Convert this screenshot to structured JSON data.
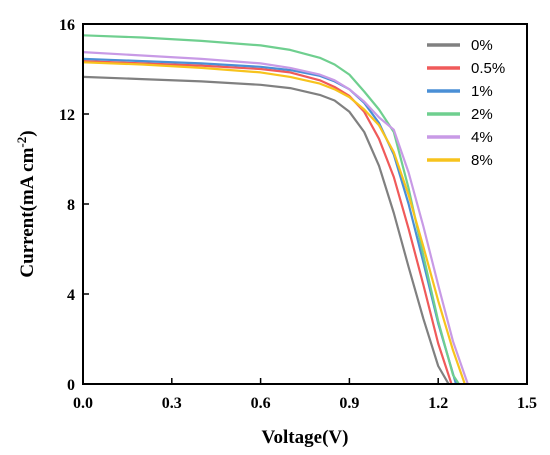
{
  "chart_data": {
    "type": "line",
    "xlabel": "Voltage(V)",
    "ylabel": "Current(mA cm",
    "ylabel_sup": "-2",
    "ylabel_end": ")",
    "xlim": [
      0.0,
      1.5
    ],
    "ylim": [
      0,
      16
    ],
    "xticks": [
      "0.0",
      "0.3",
      "0.6",
      "0.9",
      "1.2",
      "1.5"
    ],
    "yticks": [
      "0",
      "4",
      "8",
      "12",
      "16"
    ],
    "grid": false,
    "legend_position": "top-right",
    "series": [
      {
        "name": "0%",
        "color": "#808080",
        "points": [
          [
            0,
            13.65
          ],
          [
            0.2,
            13.55
          ],
          [
            0.4,
            13.45
          ],
          [
            0.6,
            13.3
          ],
          [
            0.7,
            13.15
          ],
          [
            0.8,
            12.85
          ],
          [
            0.85,
            12.6
          ],
          [
            0.9,
            12.1
          ],
          [
            0.95,
            11.2
          ],
          [
            1.0,
            9.7
          ],
          [
            1.05,
            7.6
          ],
          [
            1.1,
            5.2
          ],
          [
            1.15,
            2.9
          ],
          [
            1.2,
            0.8
          ],
          [
            1.235,
            0
          ]
        ]
      },
      {
        "name": "0.5%",
        "color": "#f05a5a",
        "points": [
          [
            0,
            14.35
          ],
          [
            0.2,
            14.25
          ],
          [
            0.4,
            14.15
          ],
          [
            0.6,
            14.0
          ],
          [
            0.7,
            13.85
          ],
          [
            0.8,
            13.5
          ],
          [
            0.85,
            13.2
          ],
          [
            0.9,
            12.8
          ],
          [
            0.95,
            12.1
          ],
          [
            1.0,
            10.9
          ],
          [
            1.05,
            9.2
          ],
          [
            1.1,
            6.9
          ],
          [
            1.15,
            4.4
          ],
          [
            1.2,
            1.8
          ],
          [
            1.245,
            0
          ]
        ]
      },
      {
        "name": "1%",
        "color": "#4a8fd6",
        "points": [
          [
            0,
            14.45
          ],
          [
            0.2,
            14.35
          ],
          [
            0.4,
            14.25
          ],
          [
            0.6,
            14.1
          ],
          [
            0.7,
            13.95
          ],
          [
            0.8,
            13.7
          ],
          [
            0.85,
            13.45
          ],
          [
            0.9,
            13.1
          ],
          [
            0.95,
            12.5
          ],
          [
            1.0,
            11.6
          ],
          [
            1.05,
            10.2
          ],
          [
            1.1,
            8.0
          ],
          [
            1.15,
            5.4
          ],
          [
            1.2,
            2.7
          ],
          [
            1.26,
            0
          ]
        ]
      },
      {
        "name": "2%",
        "color": "#6fcf8f",
        "points": [
          [
            0,
            15.5
          ],
          [
            0.2,
            15.4
          ],
          [
            0.4,
            15.25
          ],
          [
            0.6,
            15.05
          ],
          [
            0.7,
            14.85
          ],
          [
            0.8,
            14.5
          ],
          [
            0.85,
            14.2
          ],
          [
            0.9,
            13.75
          ],
          [
            0.95,
            13.0
          ],
          [
            1.0,
            12.2
          ],
          [
            1.05,
            11.2
          ],
          [
            1.1,
            8.7
          ],
          [
            1.15,
            5.7
          ],
          [
            1.2,
            2.8
          ],
          [
            1.25,
            0.4
          ],
          [
            1.27,
            0
          ]
        ]
      },
      {
        "name": "4%",
        "color": "#c89ae6",
        "points": [
          [
            0,
            14.75
          ],
          [
            0.2,
            14.6
          ],
          [
            0.4,
            14.45
          ],
          [
            0.6,
            14.25
          ],
          [
            0.7,
            14.05
          ],
          [
            0.8,
            13.75
          ],
          [
            0.85,
            13.5
          ],
          [
            0.9,
            13.1
          ],
          [
            0.95,
            12.55
          ],
          [
            1.0,
            11.85
          ],
          [
            1.05,
            11.3
          ],
          [
            1.1,
            9.4
          ],
          [
            1.15,
            7.0
          ],
          [
            1.2,
            4.4
          ],
          [
            1.25,
            1.9
          ],
          [
            1.3,
            0
          ]
        ]
      },
      {
        "name": "8%",
        "color": "#f7c31d",
        "points": [
          [
            0,
            14.3
          ],
          [
            0.2,
            14.2
          ],
          [
            0.4,
            14.05
          ],
          [
            0.6,
            13.85
          ],
          [
            0.7,
            13.65
          ],
          [
            0.8,
            13.35
          ],
          [
            0.85,
            13.1
          ],
          [
            0.9,
            12.75
          ],
          [
            0.95,
            12.2
          ],
          [
            1.0,
            11.5
          ],
          [
            1.05,
            10.3
          ],
          [
            1.1,
            8.4
          ],
          [
            1.15,
            6.1
          ],
          [
            1.2,
            3.7
          ],
          [
            1.25,
            1.5
          ],
          [
            1.29,
            0
          ]
        ]
      }
    ]
  }
}
